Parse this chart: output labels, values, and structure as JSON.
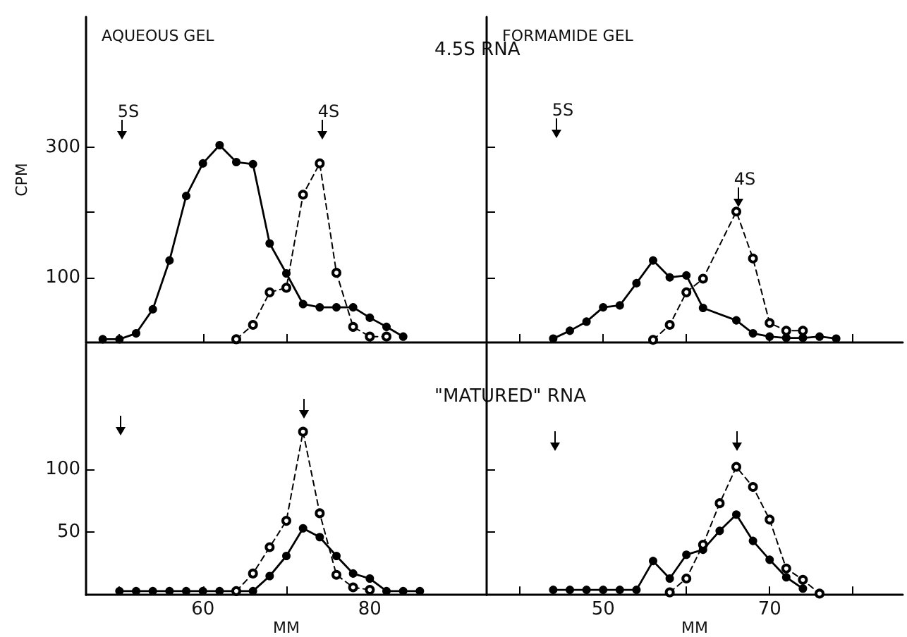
{
  "chart_data": [
    {
      "type": "line",
      "title": "AQUEOUS GEL",
      "subtitle": "4.5S RNA",
      "ylabel": "CPM",
      "marker": "circle",
      "tick_labels": "y",
      "xlim": [
        46,
        94
      ],
      "xticks": [
        {
          "value": 50,
          "label": null
        },
        {
          "value": 60,
          "label": null
        },
        {
          "value": 70,
          "label": null
        },
        {
          "value": 80,
          "label": null
        }
      ],
      "ylim": [
        0,
        500
      ],
      "yticks": [
        100,
        {
          "value": 200,
          "label": null
        },
        300
      ],
      "series": [
        {
          "color": "#000000",
          "line_style": "solid",
          "x": [
            48,
            50,
            52,
            54,
            56,
            58,
            60,
            62,
            64,
            66,
            68,
            70,
            72,
            74,
            76,
            78,
            80,
            82,
            84
          ],
          "values": [
            5,
            5,
            14,
            51,
            126,
            225,
            275,
            303,
            277,
            274,
            152,
            106,
            59,
            54,
            54,
            54,
            38,
            24,
            9
          ]
        },
        {
          "color": "#000000",
          "line_style": "dashed",
          "x": [
            64,
            66,
            68,
            70,
            72,
            74,
            76,
            78,
            80,
            82
          ],
          "values": [
            5,
            27,
            77,
            84,
            227,
            275,
            107,
            24,
            9,
            9
          ]
        }
      ],
      "annotations": [
        "5S",
        "4S"
      ]
    },
    {
      "type": "line",
      "title": "FORMAMIDE GEL",
      "marker": "circle",
      "tick_labels": false,
      "xlim": [
        36,
        86
      ],
      "xticks": [
        {
          "value": 40,
          "label": null
        },
        {
          "value": 50,
          "label": null
        },
        {
          "value": 60,
          "label": null
        },
        {
          "value": 70,
          "label": null
        },
        {
          "value": 80,
          "label": null
        }
      ],
      "ylim": [
        0,
        500
      ],
      "yticks": [
        {
          "value": 100,
          "label": null
        },
        {
          "value": 200,
          "label": null
        },
        {
          "value": 300,
          "label": null
        }
      ],
      "series": [
        {
          "color": "#000000",
          "line_style": "solid",
          "x": [
            44,
            46,
            48,
            50,
            52,
            54,
            56,
            58,
            60,
            62,
            66,
            68,
            70,
            72,
            74,
            76,
            78
          ],
          "values": [
            6,
            18,
            32,
            54,
            57,
            91,
            126,
            100,
            103,
            53,
            34,
            14,
            9,
            7,
            7,
            9,
            6
          ]
        },
        {
          "color": "#000000",
          "line_style": "dashed",
          "x": [
            56,
            58,
            60,
            62,
            66,
            68,
            70,
            72,
            74
          ],
          "values": [
            4,
            27,
            77,
            98,
            201,
            129,
            30,
            18,
            18
          ]
        }
      ],
      "annotations": [
        "5S",
        "4S"
      ]
    },
    {
      "type": "line",
      "subtitle": "\"MATURED\" RNA",
      "xlabel": "MM",
      "marker": "circle",
      "xlim": [
        46,
        94
      ],
      "xticks": [
        {
          "value": 50,
          "label": null
        },
        60,
        {
          "value": 70,
          "label": null
        },
        80
      ],
      "ylim": [
        0,
        200
      ],
      "yticks": [
        50,
        100
      ],
      "series": [
        {
          "color": "#000000",
          "line_style": "solid",
          "x": [
            50,
            52,
            54,
            56,
            58,
            60,
            62,
            64,
            66,
            68,
            70,
            72,
            74,
            76,
            78,
            80,
            82,
            84,
            86
          ],
          "values": [
            3,
            3,
            3,
            3,
            3,
            3,
            3,
            3,
            3,
            15,
            31,
            53,
            46,
            31,
            17,
            13,
            3,
            3,
            3
          ]
        },
        {
          "color": "#000000",
          "line_style": "dashed",
          "x": [
            64,
            66,
            68,
            70,
            72,
            74,
            76,
            78,
            80
          ],
          "values": [
            3,
            17,
            38,
            59,
            130,
            65,
            16,
            6,
            4
          ]
        }
      ]
    },
    {
      "type": "line",
      "xlabel": "MM",
      "marker": "circle",
      "tick_labels": "x",
      "xlim": [
        36,
        86
      ],
      "xticks": [
        {
          "value": 40,
          "label": null
        },
        50,
        {
          "value": 60,
          "label": null
        },
        70,
        {
          "value": 80,
          "label": null
        }
      ],
      "ylim": [
        0,
        200
      ],
      "yticks": [
        {
          "value": 50,
          "label": null
        },
        {
          "value": 100,
          "label": null
        }
      ],
      "series": [
        {
          "color": "#000000",
          "line_style": "solid",
          "x": [
            44,
            46,
            48,
            50,
            52,
            54,
            56,
            58,
            60,
            62,
            64,
            66,
            68,
            70,
            72,
            74
          ],
          "values": [
            4,
            4,
            4,
            4,
            4,
            4,
            27,
            13,
            32,
            36,
            51,
            64,
            43,
            28,
            14,
            5
          ]
        },
        {
          "color": "#000000",
          "line_style": "dashed",
          "x": [
            58,
            60,
            62,
            64,
            66,
            68,
            70,
            72,
            74,
            76
          ],
          "values": [
            2,
            13,
            40,
            73,
            102,
            86,
            60,
            21,
            12,
            1
          ]
        }
      ]
    }
  ]
}
